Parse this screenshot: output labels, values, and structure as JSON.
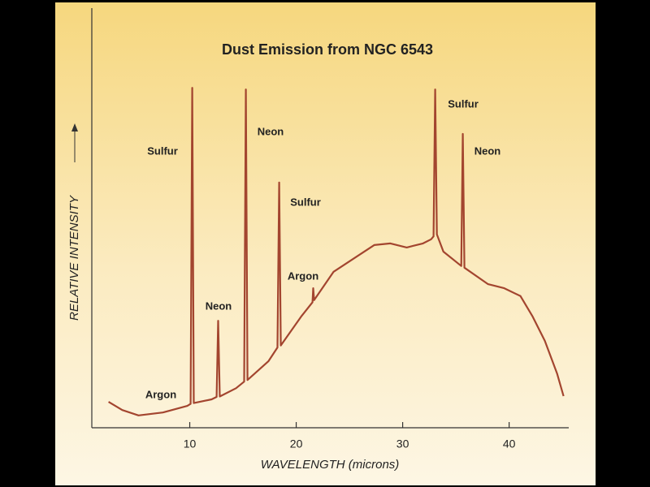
{
  "chart_data": {
    "type": "line",
    "title": "Dust Emission from NGC 6543",
    "xlabel": "WAVELENGTH (microns)",
    "ylabel": "RELATIVE INTENSITY",
    "xlim": [
      0.8,
      45.6
    ],
    "ylim": [
      0,
      100
    ],
    "xticks": [
      10,
      20,
      30,
      40
    ],
    "series": [
      {
        "color": "#a3452f",
        "x": [
          2.37,
          3.66,
          5.19,
          7.48,
          9.77,
          10.08,
          10.23,
          10.38,
          12.06,
          12.52,
          12.67,
          12.82,
          14.35,
          15.11,
          15.27,
          15.42,
          17.4,
          18.24,
          18.4,
          18.55,
          20.46,
          21.53,
          21.6,
          21.68,
          23.51,
          25.8,
          27.33,
          28.85,
          30.38,
          31.91,
          32.67,
          32.9,
          33.05,
          33.21,
          33.82,
          35.5,
          35.65,
          35.8,
          38.02,
          39.54,
          41.07,
          42.21,
          43.36,
          44.5,
          45.11
        ],
        "values": [
          6.3,
          4.3,
          3.0,
          3.7,
          5.3,
          5.8,
          82.6,
          6.0,
          6.9,
          7.5,
          26.0,
          7.6,
          9.6,
          11.2,
          82.2,
          11.6,
          16.2,
          19.5,
          59.6,
          20.0,
          27.0,
          30.5,
          33.9,
          31.0,
          37.9,
          41.8,
          44.4,
          44.8,
          43.8,
          44.8,
          45.8,
          46.5,
          82.2,
          47.0,
          42.8,
          39.3,
          71.4,
          38.9,
          34.9,
          33.9,
          32.0,
          27.0,
          21.1,
          13.2,
          7.7
        ]
      }
    ],
    "annotations": [
      "Sulfur",
      "Neon",
      "Neon",
      "Sulfur",
      "Argon",
      "Argon",
      "Sulfur",
      "Neon"
    ]
  }
}
